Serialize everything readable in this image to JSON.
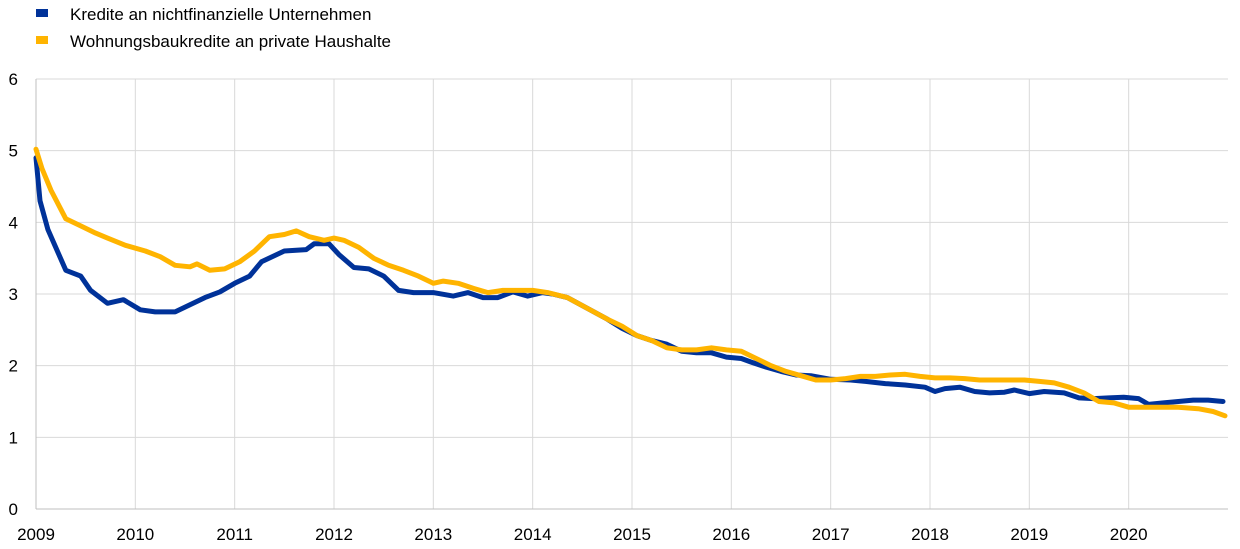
{
  "chart_data": {
    "type": "line",
    "xlabel": "",
    "ylabel": "",
    "xlim": [
      2009,
      2021
    ],
    "ylim": [
      0,
      6
    ],
    "x_ticks": [
      "2009",
      "2010",
      "2011",
      "2012",
      "2013",
      "2014",
      "2015",
      "2016",
      "2017",
      "2018",
      "2019",
      "2020"
    ],
    "y_ticks": [
      "0",
      "1",
      "2",
      "3",
      "4",
      "5",
      "6"
    ],
    "grid": "horizontal",
    "legend_position": "top-left",
    "series": [
      {
        "name": "Kredite an nichtfinanzielle Unternehmen",
        "color": "#003299",
        "points": [
          [
            2009.0,
            4.9
          ],
          [
            2009.04,
            4.3
          ],
          [
            2009.12,
            3.9
          ],
          [
            2009.3,
            3.33
          ],
          [
            2009.45,
            3.25
          ],
          [
            2009.55,
            3.05
          ],
          [
            2009.72,
            2.87
          ],
          [
            2009.88,
            2.92
          ],
          [
            2010.05,
            2.78
          ],
          [
            2010.2,
            2.75
          ],
          [
            2010.4,
            2.75
          ],
          [
            2010.55,
            2.85
          ],
          [
            2010.7,
            2.95
          ],
          [
            2010.85,
            3.03
          ],
          [
            2011.0,
            3.15
          ],
          [
            2011.15,
            3.25
          ],
          [
            2011.27,
            3.45
          ],
          [
            2011.5,
            3.6
          ],
          [
            2011.72,
            3.62
          ],
          [
            2011.8,
            3.7
          ],
          [
            2011.95,
            3.7
          ],
          [
            2012.05,
            3.55
          ],
          [
            2012.2,
            3.37
          ],
          [
            2012.35,
            3.35
          ],
          [
            2012.5,
            3.25
          ],
          [
            2012.65,
            3.05
          ],
          [
            2012.8,
            3.02
          ],
          [
            2013.0,
            3.02
          ],
          [
            2013.2,
            2.97
          ],
          [
            2013.35,
            3.02
          ],
          [
            2013.5,
            2.95
          ],
          [
            2013.65,
            2.95
          ],
          [
            2013.8,
            3.03
          ],
          [
            2013.95,
            2.97
          ],
          [
            2014.1,
            3.02
          ],
          [
            2014.2,
            3.0
          ],
          [
            2014.35,
            2.95
          ],
          [
            2014.55,
            2.8
          ],
          [
            2014.75,
            2.65
          ],
          [
            2014.9,
            2.52
          ],
          [
            2015.05,
            2.42
          ],
          [
            2015.2,
            2.35
          ],
          [
            2015.35,
            2.3
          ],
          [
            2015.5,
            2.2
          ],
          [
            2015.65,
            2.18
          ],
          [
            2015.8,
            2.18
          ],
          [
            2015.95,
            2.12
          ],
          [
            2016.1,
            2.1
          ],
          [
            2016.2,
            2.05
          ],
          [
            2016.35,
            1.98
          ],
          [
            2016.5,
            1.92
          ],
          [
            2016.65,
            1.87
          ],
          [
            2016.8,
            1.86
          ],
          [
            2017.0,
            1.81
          ],
          [
            2017.2,
            1.8
          ],
          [
            2017.35,
            1.78
          ],
          [
            2017.55,
            1.75
          ],
          [
            2017.75,
            1.73
          ],
          [
            2017.95,
            1.7
          ],
          [
            2018.05,
            1.64
          ],
          [
            2018.15,
            1.68
          ],
          [
            2018.3,
            1.7
          ],
          [
            2018.45,
            1.64
          ],
          [
            2018.6,
            1.62
          ],
          [
            2018.75,
            1.63
          ],
          [
            2018.85,
            1.66
          ],
          [
            2019.0,
            1.61
          ],
          [
            2019.15,
            1.64
          ],
          [
            2019.35,
            1.62
          ],
          [
            2019.5,
            1.55
          ],
          [
            2019.65,
            1.54
          ],
          [
            2019.8,
            1.55
          ],
          [
            2019.95,
            1.56
          ],
          [
            2020.1,
            1.54
          ],
          [
            2020.2,
            1.46
          ],
          [
            2020.35,
            1.48
          ],
          [
            2020.5,
            1.5
          ],
          [
            2020.65,
            1.52
          ],
          [
            2020.8,
            1.52
          ],
          [
            2020.95,
            1.5
          ]
        ]
      },
      {
        "name": "Wohnungsbaukredite an private Haushalte",
        "color": "#FFB400",
        "points": [
          [
            2009.0,
            5.02
          ],
          [
            2009.06,
            4.75
          ],
          [
            2009.15,
            4.45
          ],
          [
            2009.3,
            4.05
          ],
          [
            2009.45,
            3.95
          ],
          [
            2009.6,
            3.85
          ],
          [
            2009.72,
            3.78
          ],
          [
            2009.9,
            3.68
          ],
          [
            2010.1,
            3.6
          ],
          [
            2010.25,
            3.52
          ],
          [
            2010.4,
            3.4
          ],
          [
            2010.55,
            3.38
          ],
          [
            2010.62,
            3.42
          ],
          [
            2010.75,
            3.33
          ],
          [
            2010.9,
            3.35
          ],
          [
            2011.05,
            3.45
          ],
          [
            2011.2,
            3.6
          ],
          [
            2011.35,
            3.8
          ],
          [
            2011.5,
            3.83
          ],
          [
            2011.62,
            3.88
          ],
          [
            2011.75,
            3.8
          ],
          [
            2011.9,
            3.75
          ],
          [
            2012.0,
            3.78
          ],
          [
            2012.1,
            3.75
          ],
          [
            2012.25,
            3.65
          ],
          [
            2012.4,
            3.5
          ],
          [
            2012.55,
            3.4
          ],
          [
            2012.7,
            3.33
          ],
          [
            2012.85,
            3.25
          ],
          [
            2013.0,
            3.15
          ],
          [
            2013.1,
            3.18
          ],
          [
            2013.25,
            3.15
          ],
          [
            2013.4,
            3.08
          ],
          [
            2013.55,
            3.02
          ],
          [
            2013.7,
            3.05
          ],
          [
            2013.85,
            3.05
          ],
          [
            2014.0,
            3.05
          ],
          [
            2014.15,
            3.02
          ],
          [
            2014.35,
            2.95
          ],
          [
            2014.55,
            2.8
          ],
          [
            2014.75,
            2.65
          ],
          [
            2014.9,
            2.55
          ],
          [
            2015.05,
            2.42
          ],
          [
            2015.2,
            2.35
          ],
          [
            2015.35,
            2.25
          ],
          [
            2015.5,
            2.22
          ],
          [
            2015.65,
            2.22
          ],
          [
            2015.8,
            2.25
          ],
          [
            2015.95,
            2.22
          ],
          [
            2016.1,
            2.2
          ],
          [
            2016.25,
            2.1
          ],
          [
            2016.4,
            2.0
          ],
          [
            2016.55,
            1.92
          ],
          [
            2016.7,
            1.86
          ],
          [
            2016.85,
            1.8
          ],
          [
            2017.0,
            1.8
          ],
          [
            2017.15,
            1.82
          ],
          [
            2017.3,
            1.85
          ],
          [
            2017.45,
            1.85
          ],
          [
            2017.6,
            1.87
          ],
          [
            2017.75,
            1.88
          ],
          [
            2017.9,
            1.85
          ],
          [
            2018.05,
            1.83
          ],
          [
            2018.2,
            1.83
          ],
          [
            2018.35,
            1.82
          ],
          [
            2018.5,
            1.8
          ],
          [
            2018.65,
            1.8
          ],
          [
            2018.8,
            1.8
          ],
          [
            2018.95,
            1.8
          ],
          [
            2019.1,
            1.78
          ],
          [
            2019.25,
            1.76
          ],
          [
            2019.4,
            1.7
          ],
          [
            2019.55,
            1.62
          ],
          [
            2019.7,
            1.5
          ],
          [
            2019.85,
            1.48
          ],
          [
            2020.0,
            1.42
          ],
          [
            2020.15,
            1.42
          ],
          [
            2020.3,
            1.42
          ],
          [
            2020.5,
            1.42
          ],
          [
            2020.7,
            1.4
          ],
          [
            2020.85,
            1.36
          ],
          [
            2020.97,
            1.3
          ]
        ]
      }
    ]
  }
}
